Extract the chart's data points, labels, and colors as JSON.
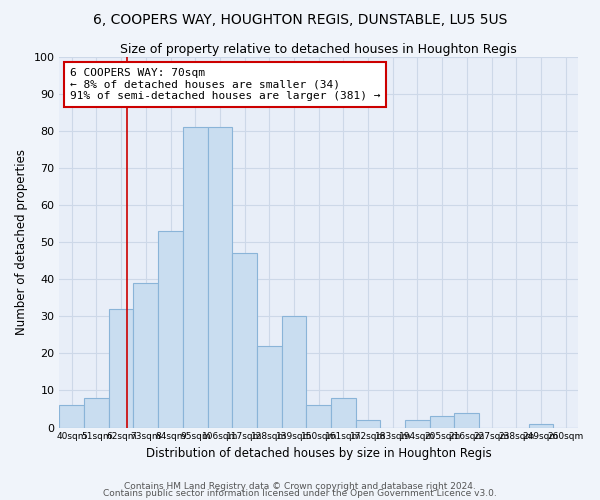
{
  "title_line1": "6, COOPERS WAY, HOUGHTON REGIS, DUNSTABLE, LU5 5US",
  "title_line2": "Size of property relative to detached houses in Houghton Regis",
  "xlabel": "Distribution of detached houses by size in Houghton Regis",
  "ylabel": "Number of detached properties",
  "bar_labels": [
    "40sqm",
    "51sqm",
    "62sqm",
    "73sqm",
    "84sqm",
    "95sqm",
    "106sqm",
    "117sqm",
    "128sqm",
    "139sqm",
    "150sqm",
    "161sqm",
    "172sqm",
    "183sqm",
    "194sqm",
    "205sqm",
    "216sqm",
    "227sqm",
    "238sqm",
    "249sqm",
    "260sqm"
  ],
  "bar_values": [
    6,
    8,
    32,
    39,
    53,
    81,
    81,
    47,
    22,
    30,
    6,
    8,
    2,
    0,
    2,
    3,
    4,
    0,
    0,
    1,
    0
  ],
  "bar_color": "#c9ddf0",
  "bar_edgecolor": "#8ab4d8",
  "grid_color": "#cdd8e8",
  "bg_color": "#e8eef8",
  "fig_bg_color": "#f0f4fa",
  "vline_color": "#cc0000",
  "annotation_text": "6 COOPERS WAY: 70sqm\n← 8% of detached houses are smaller (34)\n91% of semi-detached houses are larger (381) →",
  "annotation_box_color": "#ffffff",
  "annotation_box_edgecolor": "#cc0000",
  "ylim": [
    0,
    100
  ],
  "yticks": [
    0,
    10,
    20,
    30,
    40,
    50,
    60,
    70,
    80,
    90,
    100
  ],
  "footer_line1": "Contains HM Land Registry data © Crown copyright and database right 2024.",
  "footer_line2": "Contains public sector information licensed under the Open Government Licence v3.0.",
  "bin_width": 11,
  "vline_x": 70
}
